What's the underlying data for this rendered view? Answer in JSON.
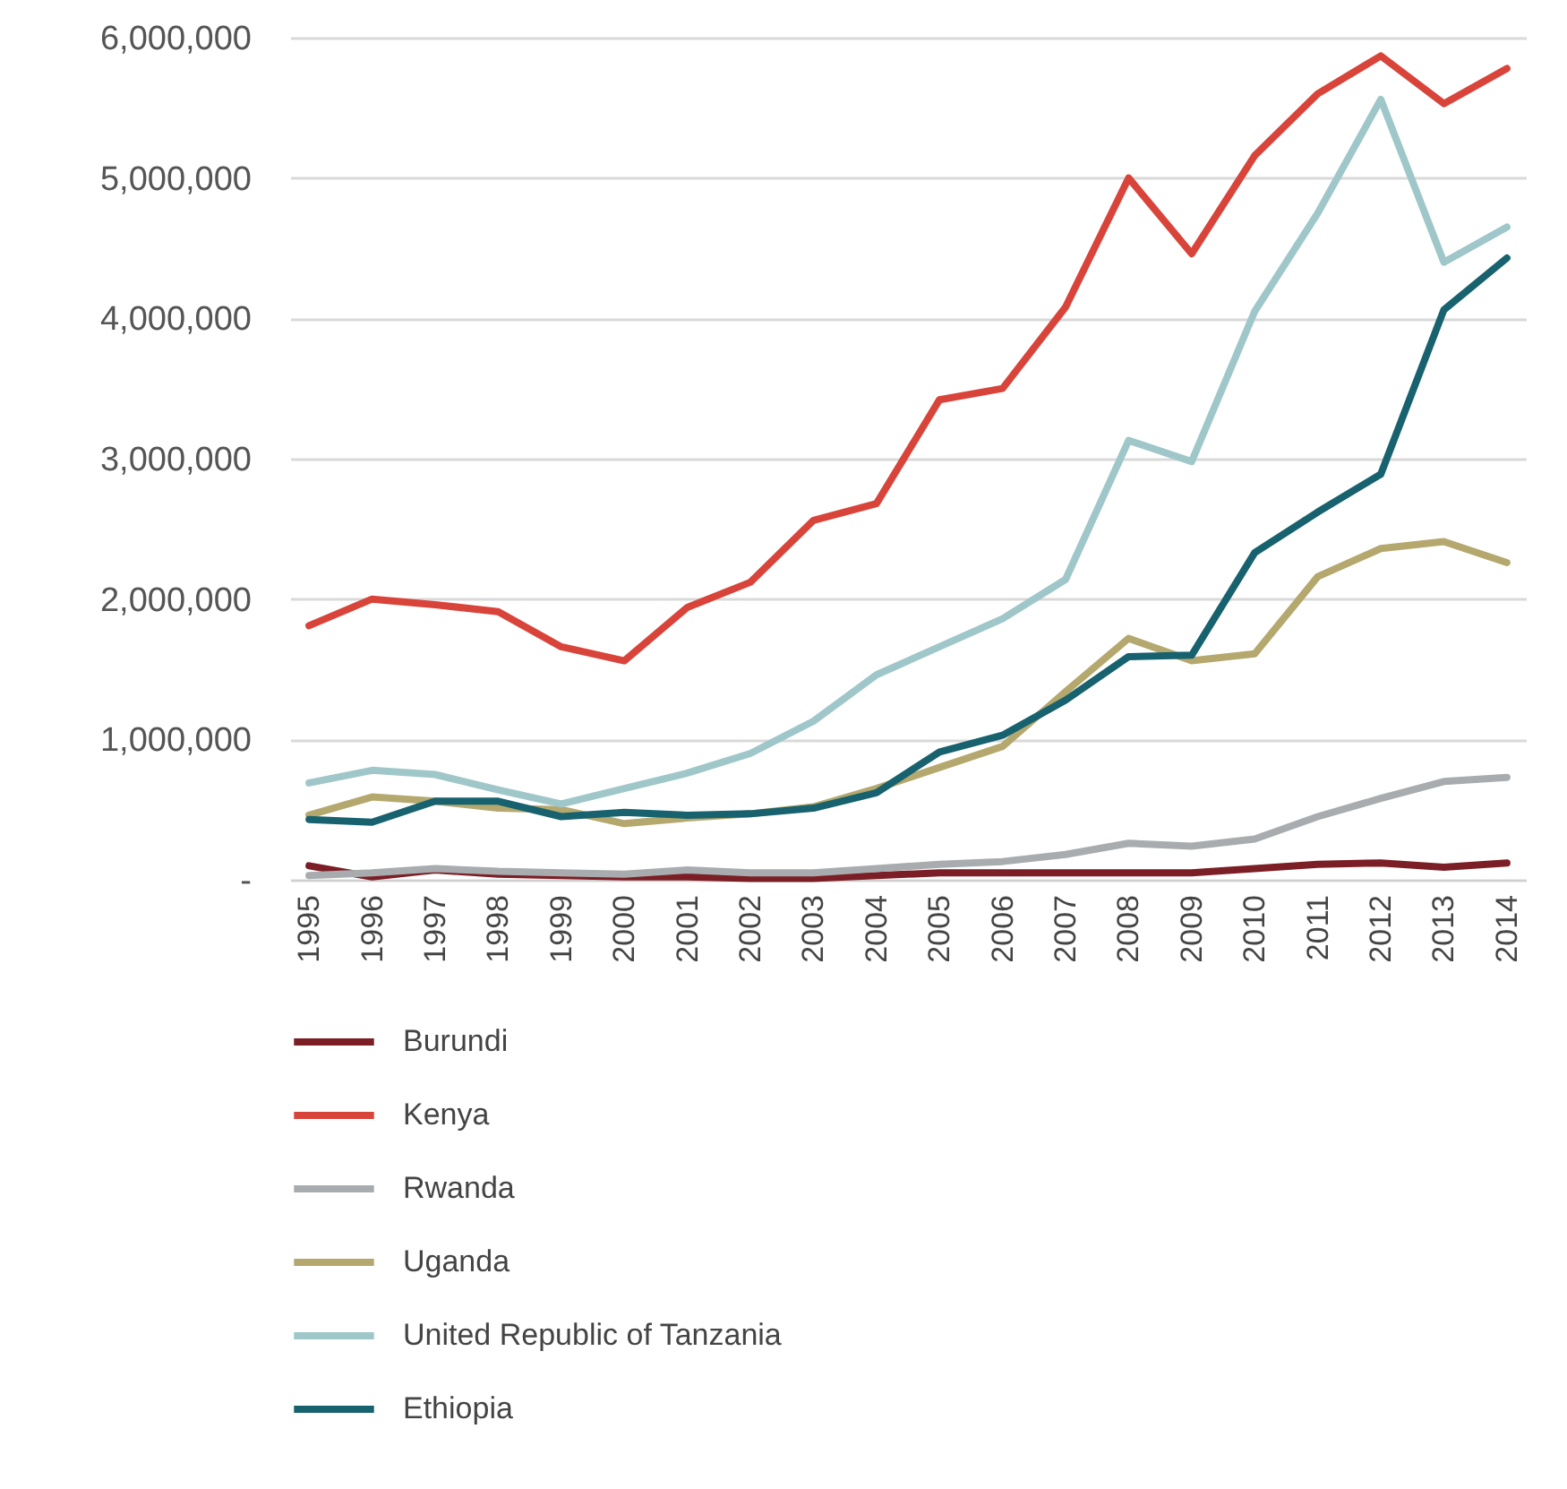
{
  "chart_data": {
    "type": "line",
    "categories": [
      "1995",
      "1996",
      "1997",
      "1998",
      "1999",
      "2000",
      "2001",
      "2002",
      "2003",
      "2004",
      "2005",
      "2006",
      "2007",
      "2008",
      "2009",
      "2010",
      "2011",
      "2012",
      "2013",
      "2014"
    ],
    "series": [
      {
        "name": "Burundi",
        "color": "#7b1e25",
        "values": [
          100000,
          20000,
          70000,
          40000,
          30000,
          20000,
          20000,
          10000,
          10000,
          30000,
          50000,
          50000,
          50000,
          50000,
          50000,
          80000,
          110000,
          120000,
          90000,
          120000
        ]
      },
      {
        "name": "Kenya",
        "color": "#d9443a",
        "values": [
          1810000,
          2000000,
          1960000,
          1910000,
          1660000,
          1560000,
          1940000,
          2120000,
          2560000,
          2680000,
          3420000,
          3500000,
          4080000,
          5000000,
          4460000,
          5160000,
          5600000,
          5870000,
          5530000,
          5780000
        ]
      },
      {
        "name": "Rwanda",
        "color": "#a9acaf",
        "values": [
          30000,
          50000,
          80000,
          60000,
          50000,
          40000,
          70000,
          50000,
          50000,
          80000,
          110000,
          130000,
          180000,
          260000,
          240000,
          290000,
          450000,
          580000,
          700000,
          730000
        ]
      },
      {
        "name": "Uganda",
        "color": "#b5a86e",
        "values": [
          460000,
          590000,
          560000,
          510000,
          500000,
          400000,
          440000,
          470000,
          520000,
          650000,
          800000,
          950000,
          1340000,
          1720000,
          1560000,
          1610000,
          2160000,
          2360000,
          2410000,
          2260000
        ]
      },
      {
        "name": "United Republic of Tanzania",
        "color": "#9fc7c9",
        "values": [
          690000,
          780000,
          750000,
          640000,
          540000,
          650000,
          760000,
          900000,
          1130000,
          1460000,
          1660000,
          1860000,
          2140000,
          3130000,
          2980000,
          4050000,
          4750000,
          5560000,
          4400000,
          4650000
        ]
      },
      {
        "name": "Ethiopia",
        "color": "#17626e",
        "values": [
          430000,
          410000,
          560000,
          560000,
          450000,
          480000,
          460000,
          470000,
          510000,
          620000,
          910000,
          1030000,
          1280000,
          1590000,
          1600000,
          2330000,
          2620000,
          2890000,
          4060000,
          4430000
        ]
      }
    ],
    "ylim": [
      0,
      6000000
    ],
    "yticks": [
      {
        "value": 0,
        "label": "-"
      },
      {
        "value": 1000000,
        "label": "1,000,000"
      },
      {
        "value": 2000000,
        "label": "2,000,000"
      },
      {
        "value": 3000000,
        "label": "3,000,000"
      },
      {
        "value": 4000000,
        "label": "4,000,000"
      },
      {
        "value": 5000000,
        "label": "5,000,000"
      },
      {
        "value": 6000000,
        "label": "6,000,000"
      }
    ],
    "grid": "y",
    "legend": "bottom",
    "marker": "none",
    "line_style": "solid"
  }
}
